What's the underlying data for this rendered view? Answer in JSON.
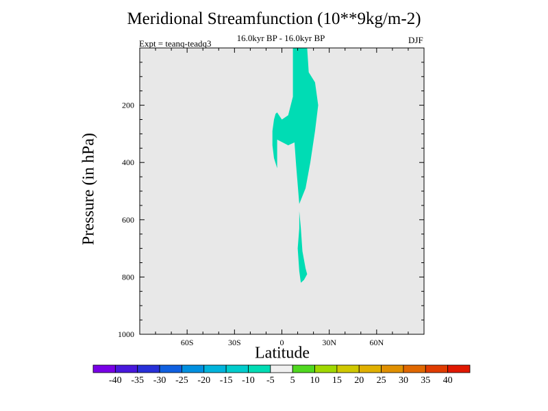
{
  "chart_data": {
    "type": "heatmap",
    "title": "Meridional Streamfunction (10**9kg/m-2)",
    "subtitle": "16.0kyr BP - 16.0kyr BP",
    "experiment": "Expt = teanq-teadq3",
    "season": "DJF",
    "xlabel": "Latitude",
    "ylabel": "Pressure (in hPa)",
    "xlim": [
      -90,
      90
    ],
    "ylim": [
      1000,
      0
    ],
    "x_ticks": [
      {
        "value": -60,
        "label": "60S"
      },
      {
        "value": -30,
        "label": "30S"
      },
      {
        "value": 0,
        "label": "0"
      },
      {
        "value": 30,
        "label": "30N"
      },
      {
        "value": 60,
        "label": "60N"
      }
    ],
    "y_ticks": [
      {
        "value": 200,
        "label": "200"
      },
      {
        "value": 400,
        "label": "400"
      },
      {
        "value": 600,
        "label": "600"
      },
      {
        "value": 800,
        "label": "800"
      },
      {
        "value": 1000,
        "label": "1000"
      }
    ],
    "background_color": "#e8e8e8",
    "contour_regions": [
      {
        "level": "-10 to -5",
        "color": "#00dcb4",
        "points": [
          [
            7,
            0
          ],
          [
            16,
            0
          ],
          [
            17,
            85
          ],
          [
            21,
            120
          ],
          [
            23,
            200
          ],
          [
            21,
            290
          ],
          [
            18,
            400
          ],
          [
            15,
            490
          ],
          [
            11,
            545
          ],
          [
            9,
            410
          ],
          [
            8,
            330
          ],
          [
            4,
            340
          ],
          [
            -3,
            320
          ],
          [
            -3,
            420
          ],
          [
            -5,
            385
          ],
          [
            -6,
            340
          ],
          [
            -6,
            290
          ],
          [
            -5,
            250
          ],
          [
            -4,
            230
          ],
          [
            -3,
            225
          ],
          [
            0,
            250
          ],
          [
            4,
            235
          ],
          [
            7,
            170
          ],
          [
            7,
            80
          ]
        ]
      },
      {
        "level": "-10 to -5",
        "color": "#00dcb4",
        "points": [
          [
            11,
            570
          ],
          [
            12,
            630
          ],
          [
            13,
            710
          ],
          [
            15,
            770
          ],
          [
            16,
            790
          ],
          [
            14,
            810
          ],
          [
            12,
            820
          ],
          [
            11,
            780
          ],
          [
            10,
            700
          ],
          [
            11,
            630
          ]
        ]
      }
    ],
    "colorbar": {
      "labels": [
        "-40",
        "-35",
        "-30",
        "-25",
        "-20",
        "-15",
        "-10",
        "-5",
        "5",
        "10",
        "15",
        "20",
        "25",
        "30",
        "35",
        "40"
      ],
      "colors": [
        "#7800e6",
        "#4818dc",
        "#2830d8",
        "#1060e0",
        "#0090e0",
        "#00b4dc",
        "#00cccc",
        "#00dcb4",
        "#f0f0f0",
        "#50d820",
        "#a0d800",
        "#d0c800",
        "#e0b000",
        "#e09000",
        "#e06800",
        "#e03c00",
        "#e01800"
      ]
    }
  }
}
